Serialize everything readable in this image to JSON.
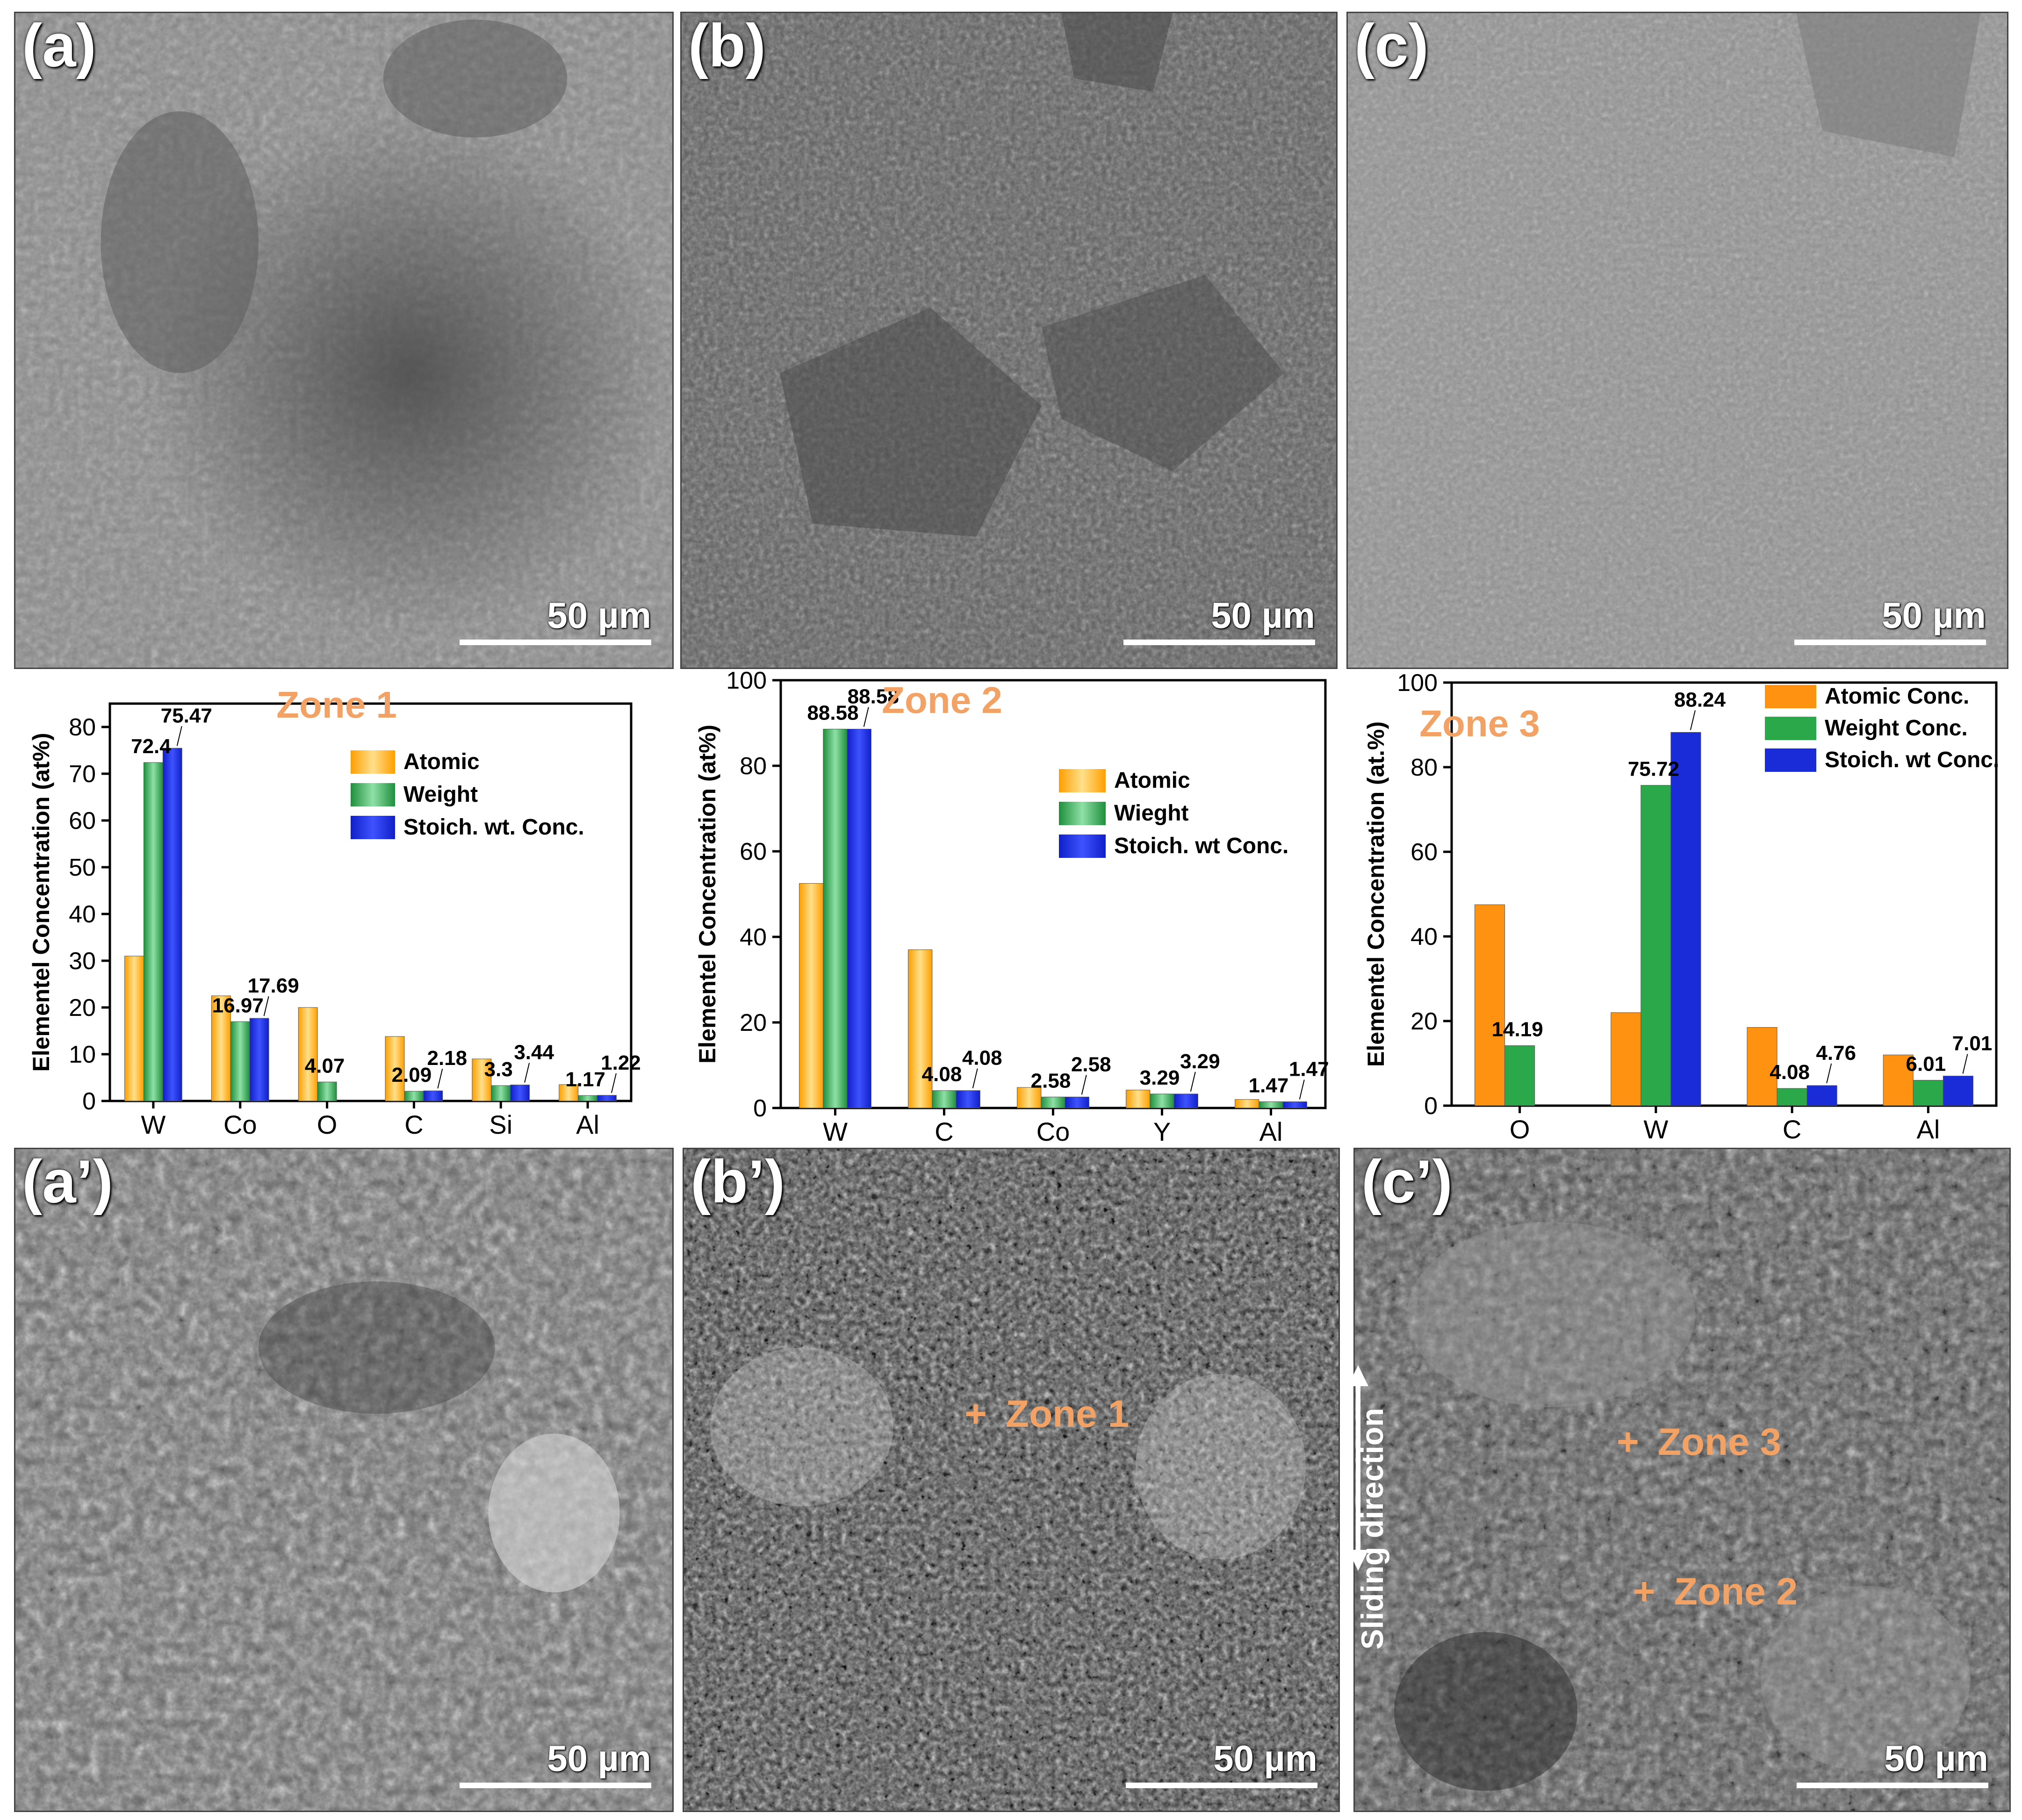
{
  "panels": {
    "a": "(a)",
    "b": "(b)",
    "c": "(c)",
    "a_prime": "(a’)",
    "b_prime": "(b’)",
    "c_prime": "(c’)"
  },
  "scale_bar": "50 µm",
  "bse_annotations": {
    "b_prime_zone": "Zone 1",
    "c_prime_zone_upper": "Zone 3",
    "c_prime_zone_lower": "Zone  2",
    "plus": "+",
    "sliding_direction": "Sliding direction"
  },
  "colors": {
    "atomic_zone12": "#ffb400",
    "atomic_zone3": "#ff9210",
    "weight": "#2aa84a",
    "stoich": "#1a2bd8",
    "zone_label": "#f2a264"
  },
  "chart_data": [
    {
      "type": "bar",
      "title": "Zone 1",
      "categories": [
        "W",
        "Co",
        "O",
        "C",
        "Si",
        "Al"
      ],
      "ylabel": "Elementel Concentration (at%)",
      "ylim": [
        0,
        85
      ],
      "yticks": [
        0,
        10,
        20,
        30,
        40,
        50,
        60,
        70,
        80
      ],
      "series": [
        {
          "name": "Atomic",
          "values": [
            31,
            22.5,
            20,
            13.8,
            9,
            3.5
          ]
        },
        {
          "name": "Weight",
          "values": [
            72.4,
            16.97,
            4.07,
            2.09,
            3.3,
            1.17
          ]
        },
        {
          "name": "Stoich. wt. Conc.",
          "values": [
            75.47,
            17.69,
            null,
            2.18,
            3.44,
            1.22
          ]
        }
      ],
      "labels": [
        {
          "text": "72.4",
          "value": 72.4
        },
        {
          "text": "75.47",
          "value": 75.47
        },
        {
          "text": "16.97",
          "value": 16.97
        },
        {
          "text": "17.69",
          "value": 17.69
        },
        {
          "text": "4.07",
          "value": 4.07
        },
        {
          "text": "2.09",
          "value": 2.09
        },
        {
          "text": "2.18",
          "value": 2.18
        },
        {
          "text": "3.3",
          "value": 3.3
        },
        {
          "text": "3.44",
          "value": 3.44
        },
        {
          "text": "1.17",
          "value": 1.17
        },
        {
          "text": "1.22",
          "value": 1.22
        }
      ],
      "legend": "right"
    },
    {
      "type": "bar",
      "title": "Zone 2",
      "categories": [
        "W",
        "C",
        "Co",
        "Y",
        "Al"
      ],
      "ylabel": "Elementel Concentration (at%)",
      "ylim": [
        0,
        100
      ],
      "yticks": [
        0,
        20,
        40,
        60,
        80,
        100
      ],
      "series": [
        {
          "name": "Atomic",
          "values": [
            52.5,
            37,
            4.8,
            4.2,
            2
          ]
        },
        {
          "name": "Wieght",
          "values": [
            88.58,
            4.08,
            2.58,
            3.29,
            1.47
          ]
        },
        {
          "name": "Stoich. wt Conc.",
          "values": [
            88.58,
            4.08,
            2.58,
            3.29,
            1.47
          ]
        }
      ],
      "labels": [
        {
          "text": "88.58",
          "value": 88.58
        },
        {
          "text": "88.58",
          "value": 88.58
        },
        {
          "text": "4.08",
          "value": 4.08
        },
        {
          "text": "4.08",
          "value": 4.08
        },
        {
          "text": "2.58",
          "value": 2.58
        },
        {
          "text": "2.58",
          "value": 2.58
        },
        {
          "text": "3.29",
          "value": 3.29
        },
        {
          "text": "3.29",
          "value": 3.29
        },
        {
          "text": "1.47",
          "value": 1.47
        },
        {
          "text": "1.47",
          "value": 1.47
        }
      ],
      "legend": "right"
    },
    {
      "type": "bar",
      "title": "Zone 3",
      "categories": [
        "O",
        "W",
        "C",
        "Al"
      ],
      "ylabel": "Elementel Concentration (at.%)",
      "ylim": [
        0,
        100
      ],
      "yticks": [
        0,
        20,
        40,
        60,
        80,
        100
      ],
      "series": [
        {
          "name": "Atomic Conc.",
          "values": [
            47.5,
            22,
            18.5,
            12
          ]
        },
        {
          "name": "Weight Conc.",
          "values": [
            14.19,
            75.72,
            4.08,
            6.01
          ]
        },
        {
          "name": "Stoich. wt Conc.",
          "values": [
            null,
            88.24,
            4.76,
            7.01
          ]
        }
      ],
      "labels": [
        {
          "text": "14.19",
          "value": 14.19
        },
        {
          "text": "75.72",
          "value": 75.72
        },
        {
          "text": "88.24",
          "value": 88.24
        },
        {
          "text": "4.08",
          "value": 4.08
        },
        {
          "text": "4.76",
          "value": 4.76
        },
        {
          "text": "6.01",
          "value": 6.01
        },
        {
          "text": "7.01",
          "value": 7.01
        }
      ],
      "legend": "top-right"
    }
  ]
}
